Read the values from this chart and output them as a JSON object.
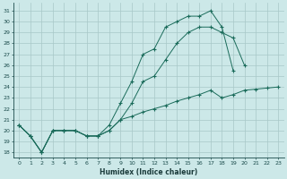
{
  "xlabel": "Humidex (Indice chaleur)",
  "background_color": "#cce8e8",
  "line_color": "#1a6b5a",
  "grid_color": "#b0d0d0",
  "xlim": [
    -0.5,
    23.5
  ],
  "ylim": [
    17.5,
    31.7
  ],
  "yticks": [
    18,
    19,
    20,
    21,
    22,
    23,
    24,
    25,
    26,
    27,
    28,
    29,
    30,
    31
  ],
  "xticks": [
    0,
    1,
    2,
    3,
    4,
    5,
    6,
    7,
    8,
    9,
    10,
    11,
    12,
    13,
    14,
    15,
    16,
    17,
    18,
    19,
    20,
    21,
    22,
    23
  ],
  "s1_x": [
    0,
    1,
    2,
    3,
    4,
    5,
    6,
    7,
    8,
    9,
    10,
    11,
    12,
    13,
    14,
    15,
    16,
    17,
    18,
    19,
    20
  ],
  "s1_y": [
    20.5,
    19.5,
    18.0,
    20.0,
    20.0,
    20.0,
    19.5,
    19.5,
    20.5,
    22.5,
    24.5,
    27.0,
    27.5,
    29.5,
    30.0,
    30.5,
    30.5,
    31.0,
    29.5,
    25.5,
    null
  ],
  "s2_x": [
    0,
    1,
    2,
    3,
    4,
    5,
    6,
    7,
    8,
    9,
    10,
    11,
    12,
    13,
    14,
    15,
    16,
    17,
    18,
    19,
    20
  ],
  "s2_y": [
    20.5,
    19.5,
    18.0,
    20.0,
    20.0,
    20.0,
    19.5,
    19.5,
    20.0,
    21.0,
    22.5,
    24.5,
    25.0,
    26.5,
    28.0,
    29.0,
    29.5,
    29.5,
    29.0,
    28.5,
    26.0
  ],
  "s3_x": [
    0,
    1,
    2,
    3,
    4,
    5,
    6,
    7,
    8,
    9,
    10,
    11,
    12,
    13,
    14,
    15,
    16,
    17,
    18,
    19,
    20,
    21,
    22,
    23
  ],
  "s3_y": [
    20.5,
    19.5,
    18.0,
    20.0,
    20.0,
    20.0,
    19.5,
    19.5,
    20.0,
    21.0,
    21.3,
    21.7,
    22.0,
    22.3,
    22.7,
    23.0,
    23.3,
    23.7,
    23.0,
    23.3,
    23.7,
    23.8,
    23.9,
    24.0
  ]
}
